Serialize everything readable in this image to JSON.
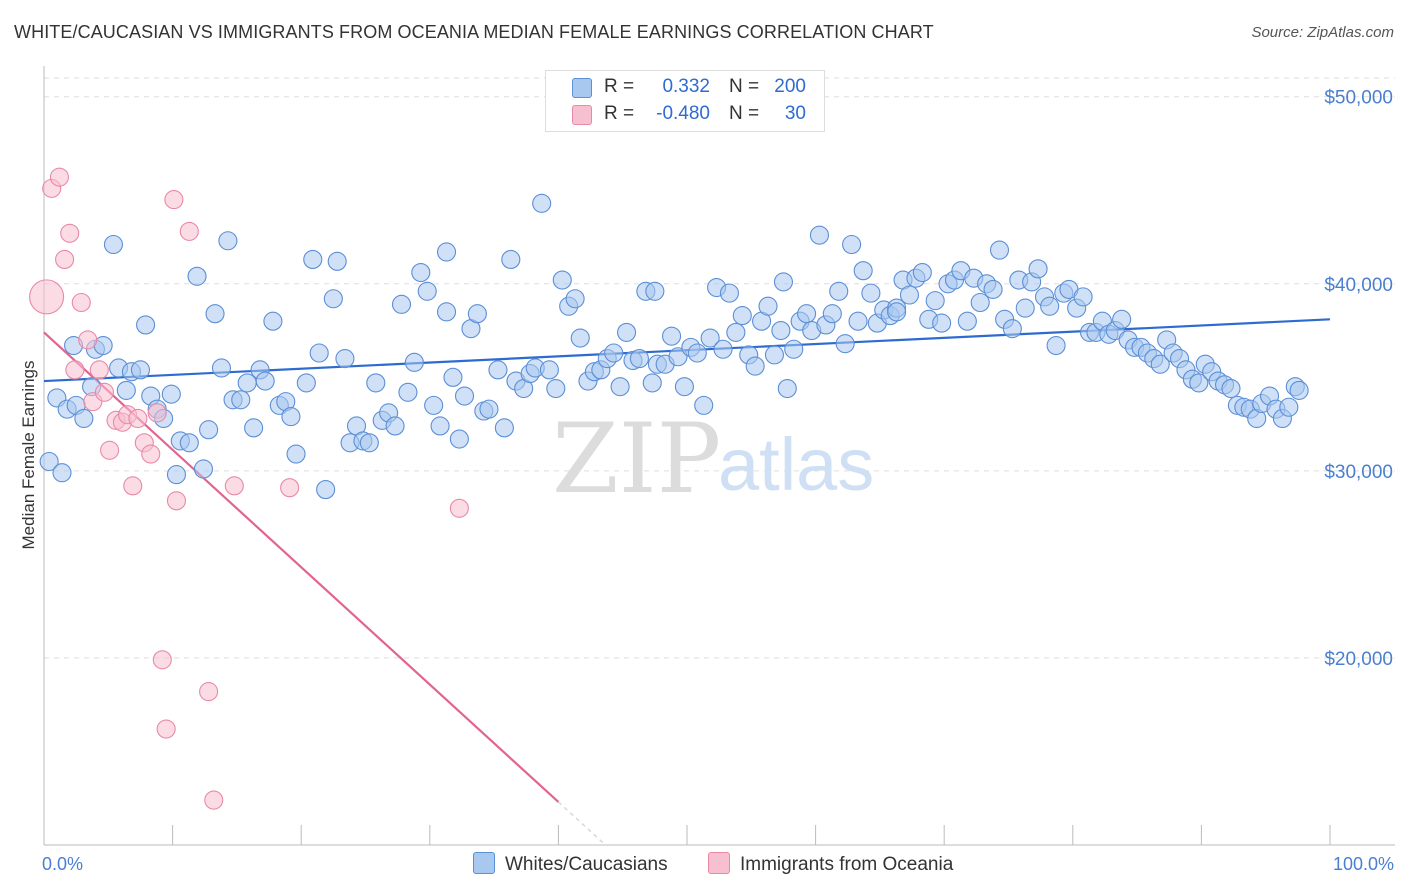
{
  "title": "WHITE/CAUCASIAN VS IMMIGRANTS FROM OCEANIA MEDIAN FEMALE EARNINGS CORRELATION CHART",
  "source": "Source: ZipAtlas.com",
  "watermark": {
    "zip": "ZIP",
    "atlas": "atlas"
  },
  "colors": {
    "blue_fill": "#a9c8f0",
    "blue_stroke": "#5b8fd6",
    "blue_line": "#2e6bd0",
    "pink_fill": "#f7c0d0",
    "pink_stroke": "#e889a8",
    "pink_line": "#e2648f",
    "axis_text": "#4a7fd0",
    "grid": "#dddddd"
  },
  "legend_top": {
    "rows": [
      {
        "r_label": "R =",
        "r_value": "0.332",
        "n_label": "N =",
        "n_value": "200"
      },
      {
        "r_label": "R =",
        "r_value": "-0.480",
        "n_label": "N =",
        "n_value": "30"
      }
    ]
  },
  "legend_bottom": {
    "series1": "Whites/Caucasians",
    "series2": "Immigrants from Oceania"
  },
  "chart_data": {
    "type": "scatter",
    "title": "WHITE/CAUCASIAN VS IMMIGRANTS FROM OCEANIA MEDIAN FEMALE EARNINGS CORRELATION CHART",
    "xlabel": "",
    "ylabel": "Median Female Earnings",
    "xlim": [
      0,
      100
    ],
    "ylim": [
      10000,
      51000
    ],
    "x_tick_labels": [
      "0.0%",
      "100.0%"
    ],
    "y_ticks": [
      {
        "value": 20000,
        "label": "$20,000"
      },
      {
        "value": 30000,
        "label": "$30,000"
      },
      {
        "value": 40000,
        "label": "$40,000"
      },
      {
        "value": 50000,
        "label": "$50,000"
      }
    ],
    "series": [
      {
        "name": "Whites/Caucasians",
        "R": 0.332,
        "N": 200,
        "trend": {
          "x": [
            0,
            100
          ],
          "y": [
            34800,
            38100
          ]
        },
        "points": [
          [
            0.4,
            30500
          ],
          [
            1,
            33900
          ],
          [
            1.4,
            29900
          ],
          [
            1.8,
            33300
          ],
          [
            2.3,
            36700
          ],
          [
            2.5,
            33500
          ],
          [
            3.1,
            32800
          ],
          [
            3.7,
            34500
          ],
          [
            4,
            36500
          ],
          [
            4.6,
            36700
          ],
          [
            5.4,
            42100
          ],
          [
            5.8,
            35500
          ],
          [
            6.4,
            34300
          ],
          [
            6.8,
            35300
          ],
          [
            7.5,
            35400
          ],
          [
            7.9,
            37800
          ],
          [
            8.3,
            34000
          ],
          [
            8.8,
            33300
          ],
          [
            9.3,
            32800
          ],
          [
            9.9,
            34100
          ],
          [
            10.3,
            29800
          ],
          [
            10.6,
            31600
          ],
          [
            11.3,
            31500
          ],
          [
            11.9,
            40400
          ],
          [
            12.4,
            30100
          ],
          [
            12.8,
            32200
          ],
          [
            13.3,
            38400
          ],
          [
            13.8,
            35500
          ],
          [
            14.3,
            42300
          ],
          [
            14.7,
            33800
          ],
          [
            15.3,
            33800
          ],
          [
            15.8,
            34700
          ],
          [
            16.3,
            32300
          ],
          [
            16.8,
            35400
          ],
          [
            17.2,
            34800
          ],
          [
            17.8,
            38000
          ],
          [
            18.3,
            33500
          ],
          [
            18.8,
            33700
          ],
          [
            19.2,
            32900
          ],
          [
            19.6,
            30900
          ],
          [
            20.4,
            34700
          ],
          [
            20.9,
            41300
          ],
          [
            21.4,
            36300
          ],
          [
            21.9,
            29000
          ],
          [
            22.5,
            39200
          ],
          [
            22.8,
            41200
          ],
          [
            23.4,
            36000
          ],
          [
            23.8,
            31500
          ],
          [
            24.3,
            32400
          ],
          [
            24.8,
            31600
          ],
          [
            25.3,
            31500
          ],
          [
            25.8,
            34700
          ],
          [
            26.3,
            32700
          ],
          [
            26.8,
            33100
          ],
          [
            27.3,
            32400
          ],
          [
            27.8,
            38900
          ],
          [
            28.3,
            34200
          ],
          [
            28.8,
            35800
          ],
          [
            29.3,
            40600
          ],
          [
            29.8,
            39600
          ],
          [
            30.3,
            33500
          ],
          [
            30.8,
            32400
          ],
          [
            31.3,
            38500
          ],
          [
            31.8,
            35000
          ],
          [
            32.3,
            31700
          ],
          [
            32.7,
            34000
          ],
          [
            33.2,
            37600
          ],
          [
            33.7,
            38400
          ],
          [
            34.2,
            33200
          ],
          [
            34.6,
            33300
          ],
          [
            35.3,
            35400
          ],
          [
            35.8,
            32300
          ],
          [
            36.3,
            41300
          ],
          [
            36.7,
            34800
          ],
          [
            37.3,
            34400
          ],
          [
            37.8,
            35200
          ],
          [
            38.2,
            35500
          ],
          [
            38.7,
            44300
          ],
          [
            39.3,
            35400
          ],
          [
            39.8,
            34400
          ],
          [
            40.3,
            40200
          ],
          [
            40.8,
            38800
          ],
          [
            41.3,
            39200
          ],
          [
            41.7,
            37100
          ],
          [
            42.3,
            34800
          ],
          [
            42.8,
            35300
          ],
          [
            43.3,
            35400
          ],
          [
            43.8,
            36000
          ],
          [
            44.3,
            36300
          ],
          [
            44.8,
            34500
          ],
          [
            45.3,
            37400
          ],
          [
            45.8,
            35900
          ],
          [
            46.3,
            36000
          ],
          [
            46.8,
            39600
          ],
          [
            47.3,
            34700
          ],
          [
            47.7,
            35700
          ],
          [
            48.3,
            35700
          ],
          [
            48.8,
            37200
          ],
          [
            49.3,
            36100
          ],
          [
            49.8,
            34500
          ],
          [
            50.3,
            36600
          ],
          [
            50.8,
            36300
          ],
          [
            51.3,
            33500
          ],
          [
            51.8,
            37100
          ],
          [
            52.3,
            39800
          ],
          [
            52.8,
            36500
          ],
          [
            53.3,
            39500
          ],
          [
            53.8,
            37400
          ],
          [
            54.3,
            38300
          ],
          [
            54.8,
            36200
          ],
          [
            55.3,
            35600
          ],
          [
            55.8,
            38000
          ],
          [
            56.3,
            38800
          ],
          [
            56.8,
            36200
          ],
          [
            57.3,
            37500
          ],
          [
            57.8,
            34400
          ],
          [
            58.3,
            36500
          ],
          [
            58.8,
            38000
          ],
          [
            59.3,
            38400
          ],
          [
            59.7,
            37500
          ],
          [
            60.3,
            42600
          ],
          [
            60.8,
            37800
          ],
          [
            61.3,
            38400
          ],
          [
            61.8,
            39600
          ],
          [
            62.3,
            36800
          ],
          [
            62.8,
            42100
          ],
          [
            63.3,
            38000
          ],
          [
            63.7,
            40700
          ],
          [
            64.3,
            39500
          ],
          [
            64.8,
            37900
          ],
          [
            65.3,
            38600
          ],
          [
            65.8,
            38300
          ],
          [
            66.3,
            38700
          ],
          [
            66.8,
            40200
          ],
          [
            67.3,
            39400
          ],
          [
            67.8,
            40300
          ],
          [
            68.3,
            40600
          ],
          [
            68.8,
            38100
          ],
          [
            69.3,
            39100
          ],
          [
            69.8,
            37900
          ],
          [
            70.3,
            40000
          ],
          [
            70.8,
            40200
          ],
          [
            71.3,
            40700
          ],
          [
            71.8,
            38000
          ],
          [
            72.3,
            40300
          ],
          [
            72.8,
            39000
          ],
          [
            73.3,
            40000
          ],
          [
            73.8,
            39700
          ],
          [
            74.3,
            41800
          ],
          [
            74.7,
            38100
          ],
          [
            75.3,
            37600
          ],
          [
            75.8,
            40200
          ],
          [
            76.3,
            38700
          ],
          [
            76.8,
            40100
          ],
          [
            77.3,
            40800
          ],
          [
            77.8,
            39300
          ],
          [
            78.2,
            38800
          ],
          [
            78.7,
            36700
          ],
          [
            79.3,
            39500
          ],
          [
            79.7,
            39700
          ],
          [
            80.3,
            38700
          ],
          [
            80.8,
            39300
          ],
          [
            81.3,
            37400
          ],
          [
            81.8,
            37400
          ],
          [
            82.3,
            38000
          ],
          [
            82.8,
            37300
          ],
          [
            83.3,
            37500
          ],
          [
            83.8,
            38100
          ],
          [
            84.3,
            37000
          ],
          [
            84.8,
            36600
          ],
          [
            85.3,
            36600
          ],
          [
            85.8,
            36300
          ],
          [
            86.3,
            36000
          ],
          [
            86.8,
            35700
          ],
          [
            87.3,
            37000
          ],
          [
            87.8,
            36300
          ],
          [
            88.3,
            36000
          ],
          [
            88.8,
            35400
          ],
          [
            89.3,
            34900
          ],
          [
            89.8,
            34700
          ],
          [
            90.3,
            35700
          ],
          [
            90.8,
            35300
          ],
          [
            91.3,
            34800
          ],
          [
            91.8,
            34600
          ],
          [
            92.3,
            34400
          ],
          [
            92.8,
            33500
          ],
          [
            93.3,
            33400
          ],
          [
            93.8,
            33300
          ],
          [
            94.3,
            32800
          ],
          [
            94.7,
            33600
          ],
          [
            95.3,
            34000
          ],
          [
            95.8,
            33300
          ],
          [
            96.3,
            32800
          ],
          [
            96.8,
            33400
          ],
          [
            97.3,
            34500
          ],
          [
            97.6,
            34300
          ],
          [
            66.3,
            38500
          ],
          [
            47.5,
            39600
          ],
          [
            31.3,
            41700
          ],
          [
            57.5,
            40100
          ]
        ]
      },
      {
        "name": "Immigrants from Oceania",
        "R": -0.48,
        "N": 30,
        "trend": {
          "x": [
            0,
            40
          ],
          "y": [
            37400,
            12300
          ]
        },
        "trend_dashed": {
          "x": [
            40,
            43.5
          ],
          "y": [
            12300,
            10100
          ]
        },
        "points": [
          [
            0.2,
            39300
          ],
          [
            0.6,
            45100
          ],
          [
            1.2,
            45700
          ],
          [
            1.6,
            41300
          ],
          [
            2,
            42700
          ],
          [
            2.4,
            35400
          ],
          [
            2.9,
            39000
          ],
          [
            3.4,
            37000
          ],
          [
            3.8,
            33700
          ],
          [
            4.3,
            35400
          ],
          [
            4.7,
            34200
          ],
          [
            5.1,
            31100
          ],
          [
            5.6,
            32700
          ],
          [
            6.1,
            32600
          ],
          [
            6.5,
            33000
          ],
          [
            6.9,
            29200
          ],
          [
            7.3,
            32800
          ],
          [
            7.8,
            31500
          ],
          [
            8.3,
            30900
          ],
          [
            8.8,
            33100
          ],
          [
            9.2,
            19900
          ],
          [
            9.5,
            16200
          ],
          [
            10.1,
            44500
          ],
          [
            10.3,
            28400
          ],
          [
            11.3,
            42800
          ],
          [
            12.8,
            18200
          ],
          [
            13.2,
            12400
          ],
          [
            14.8,
            29200
          ],
          [
            19.1,
            29100
          ],
          [
            32.3,
            28000
          ]
        ]
      }
    ]
  }
}
